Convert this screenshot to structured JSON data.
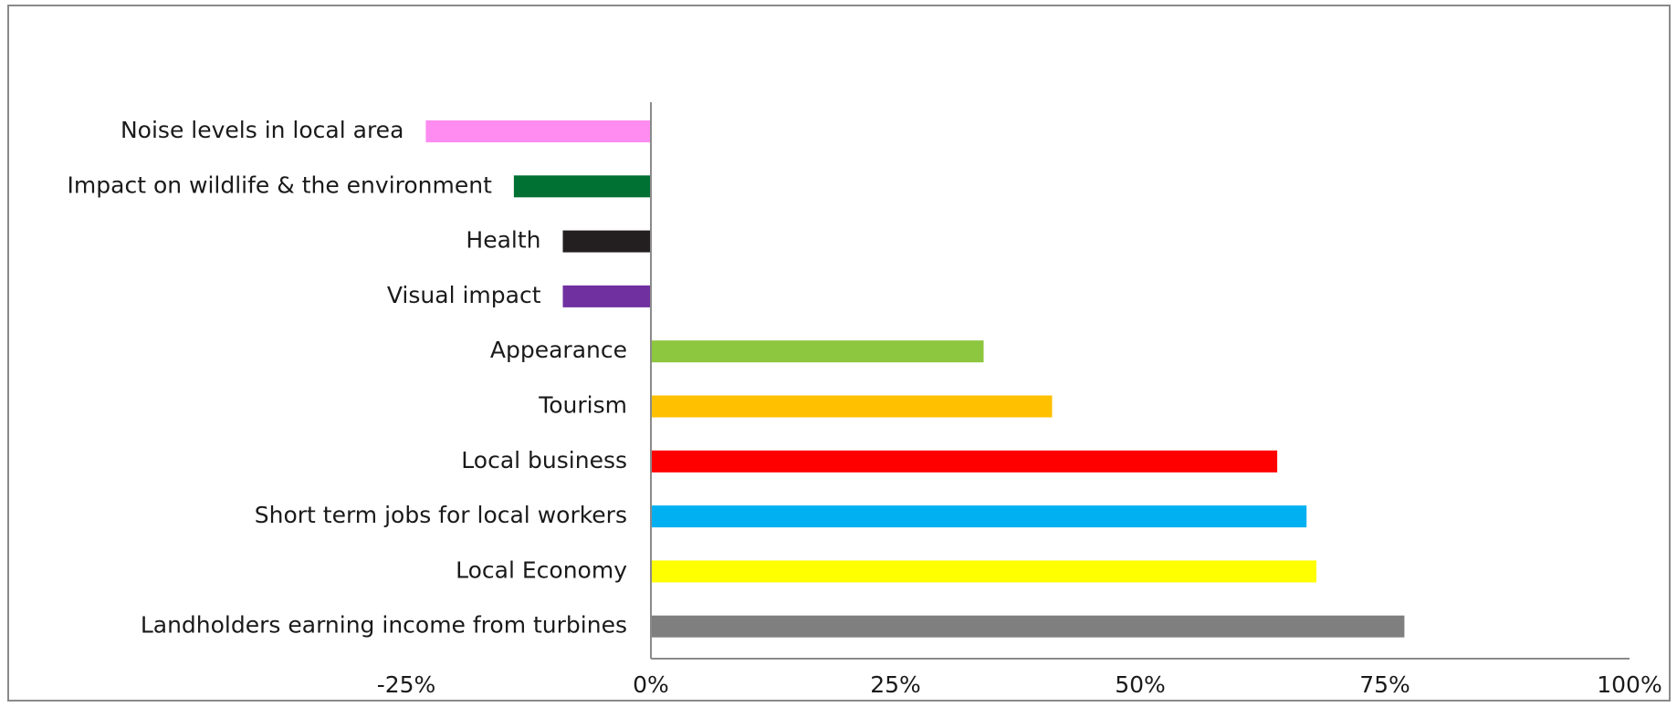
{
  "chart_data": {
    "type": "bar",
    "orientation": "horizontal",
    "title": "",
    "xlabel": "",
    "ylabel": "",
    "xlim": [
      -0.25,
      1.0
    ],
    "grid": false,
    "legend": "none",
    "tick_values": [
      -0.25,
      0,
      0.25,
      0.5,
      0.75,
      1.0
    ],
    "tick_labels": [
      "-25%",
      "0%",
      "25%",
      "50%",
      "75%",
      "100%"
    ],
    "categories": [
      "Noise levels in local area",
      "Impact on wildlife & the environment",
      "Health",
      "Visual impact",
      "Appearance",
      "Tourism",
      "Local business",
      "Short term jobs for local workers",
      "Local Economy",
      "Landholders earning income from turbines"
    ],
    "values": [
      -0.23,
      -0.14,
      -0.09,
      -0.09,
      0.34,
      0.41,
      0.64,
      0.67,
      0.68,
      0.77
    ],
    "colors": [
      "#FF8CF0",
      "#007033",
      "#231F20",
      "#7030A0",
      "#8DC63F",
      "#FFC000",
      "#FF0000",
      "#00B0F0",
      "#FFFF00",
      "#7F7F7F"
    ],
    "axis_color": "#8a8a8a"
  }
}
